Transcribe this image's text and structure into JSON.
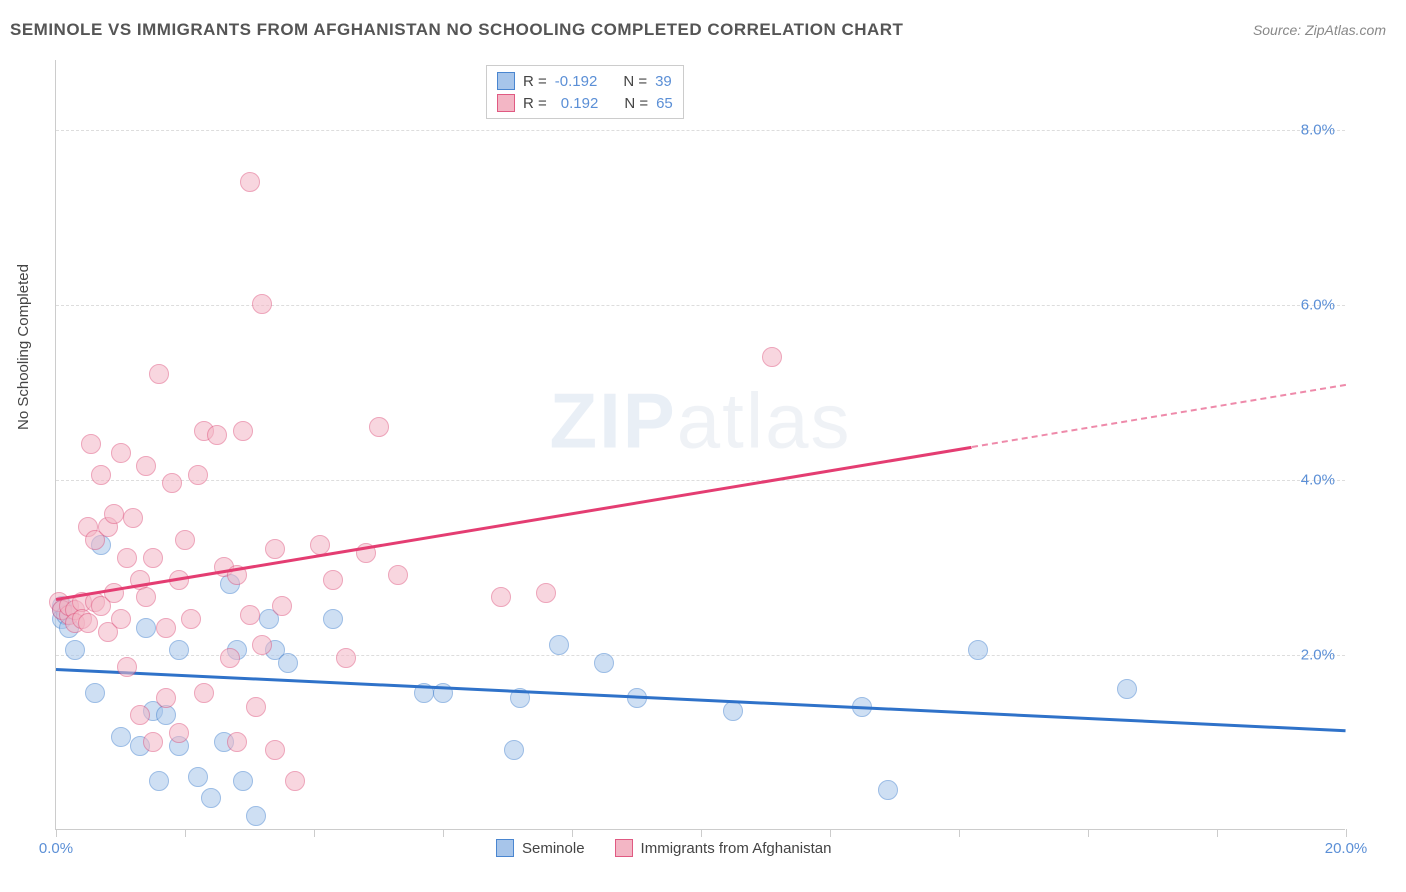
{
  "title": "SEMINOLE VS IMMIGRANTS FROM AFGHANISTAN NO SCHOOLING COMPLETED CORRELATION CHART",
  "source": "Source: ZipAtlas.com",
  "watermark_a": "ZIP",
  "watermark_b": "atlas",
  "y_label": "No Schooling Completed",
  "chart": {
    "type": "scatter",
    "background_color": "#ffffff",
    "grid_color": "#dddddd",
    "axis_color": "#cccccc",
    "tick_label_color": "#5b8fd6",
    "xlim": [
      0,
      20
    ],
    "ylim": [
      0,
      8.8
    ],
    "x_ticks": [
      0,
      2,
      4,
      6,
      8,
      10,
      12,
      14,
      16,
      18,
      20
    ],
    "x_tick_labels": {
      "0": "0.0%",
      "20": "20.0%"
    },
    "y_ticks": [
      2,
      4,
      6,
      8
    ],
    "y_tick_labels": {
      "2": "2.0%",
      "4": "4.0%",
      "6": "6.0%",
      "8": "8.0%"
    },
    "marker_radius": 10,
    "marker_opacity": 0.55,
    "line_width": 2.5
  },
  "series": [
    {
      "name": "Seminole",
      "fill_color": "#a7c5ea",
      "stroke_color": "#4a86d0",
      "trend_color": "#2f72c9",
      "trend": {
        "x1": 0,
        "y1": 1.85,
        "x2": 20,
        "y2": 1.15,
        "dash_from_x": null
      },
      "r_label": "R =",
      "r_value": "-0.192",
      "n_label": "N =",
      "n_value": "39",
      "points": [
        [
          0.1,
          2.55
        ],
        [
          0.1,
          2.5
        ],
        [
          0.1,
          2.4
        ],
        [
          0.15,
          2.45
        ],
        [
          0.2,
          2.3
        ],
        [
          0.3,
          2.05
        ],
        [
          0.6,
          1.55
        ],
        [
          0.7,
          3.25
        ],
        [
          1.0,
          1.05
        ],
        [
          1.3,
          0.95
        ],
        [
          1.4,
          2.3
        ],
        [
          1.5,
          1.35
        ],
        [
          1.6,
          0.55
        ],
        [
          1.7,
          1.3
        ],
        [
          1.9,
          0.95
        ],
        [
          1.9,
          2.05
        ],
        [
          2.2,
          0.6
        ],
        [
          2.4,
          0.35
        ],
        [
          2.6,
          1.0
        ],
        [
          2.7,
          2.8
        ],
        [
          2.8,
          2.05
        ],
        [
          2.9,
          0.55
        ],
        [
          3.1,
          0.15
        ],
        [
          3.3,
          2.4
        ],
        [
          3.4,
          2.05
        ],
        [
          3.6,
          1.9
        ],
        [
          4.3,
          2.4
        ],
        [
          5.7,
          1.55
        ],
        [
          6.0,
          1.55
        ],
        [
          7.1,
          0.9
        ],
        [
          7.2,
          1.5
        ],
        [
          7.8,
          2.1
        ],
        [
          8.5,
          1.9
        ],
        [
          9.0,
          1.5
        ],
        [
          10.5,
          1.35
        ],
        [
          12.5,
          1.4
        ],
        [
          12.9,
          0.45
        ],
        [
          14.3,
          2.05
        ],
        [
          16.6,
          1.6
        ]
      ]
    },
    {
      "name": "Immigants from Afghanistan",
      "legend_label": "Immigrants from Afghanistan",
      "fill_color": "#f3b6c5",
      "stroke_color": "#e05a82",
      "trend_color": "#e43d72",
      "trend": {
        "x1": 0,
        "y1": 2.65,
        "x2": 20,
        "y2": 5.1,
        "dash_from_x": 14.2
      },
      "r_label": "R =",
      "r_value": "0.192",
      "n_label": "N =",
      "n_value": "65",
      "points": [
        [
          0.05,
          2.6
        ],
        [
          0.1,
          2.5
        ],
        [
          0.2,
          2.45
        ],
        [
          0.2,
          2.55
        ],
        [
          0.3,
          2.5
        ],
        [
          0.3,
          2.35
        ],
        [
          0.4,
          2.6
        ],
        [
          0.4,
          2.4
        ],
        [
          0.5,
          2.35
        ],
        [
          0.5,
          3.45
        ],
        [
          0.55,
          4.4
        ],
        [
          0.6,
          2.6
        ],
        [
          0.6,
          3.3
        ],
        [
          0.7,
          2.55
        ],
        [
          0.7,
          4.05
        ],
        [
          0.8,
          2.25
        ],
        [
          0.8,
          3.45
        ],
        [
          0.9,
          2.7
        ],
        [
          0.9,
          3.6
        ],
        [
          1.0,
          2.4
        ],
        [
          1.0,
          4.3
        ],
        [
          1.1,
          3.1
        ],
        [
          1.1,
          1.85
        ],
        [
          1.2,
          3.55
        ],
        [
          1.3,
          2.85
        ],
        [
          1.3,
          1.3
        ],
        [
          1.4,
          2.65
        ],
        [
          1.4,
          4.15
        ],
        [
          1.5,
          3.1
        ],
        [
          1.5,
          1.0
        ],
        [
          1.6,
          5.2
        ],
        [
          1.7,
          2.3
        ],
        [
          1.7,
          1.5
        ],
        [
          1.8,
          3.95
        ],
        [
          1.9,
          2.85
        ],
        [
          1.9,
          1.1
        ],
        [
          2.0,
          3.3
        ],
        [
          2.1,
          2.4
        ],
        [
          2.2,
          4.05
        ],
        [
          2.3,
          1.55
        ],
        [
          2.3,
          4.55
        ],
        [
          2.5,
          4.5
        ],
        [
          2.6,
          3.0
        ],
        [
          2.7,
          1.95
        ],
        [
          2.8,
          2.9
        ],
        [
          2.8,
          1.0
        ],
        [
          2.9,
          4.55
        ],
        [
          3.0,
          7.4
        ],
        [
          3.0,
          2.45
        ],
        [
          3.1,
          1.4
        ],
        [
          3.2,
          6.0
        ],
        [
          3.2,
          2.1
        ],
        [
          3.4,
          3.2
        ],
        [
          3.4,
          0.9
        ],
        [
          3.5,
          2.55
        ],
        [
          3.7,
          0.55
        ],
        [
          4.1,
          3.25
        ],
        [
          4.3,
          2.85
        ],
        [
          4.5,
          1.95
        ],
        [
          4.8,
          3.15
        ],
        [
          5.0,
          4.6
        ],
        [
          5.3,
          2.9
        ],
        [
          6.9,
          2.65
        ],
        [
          7.6,
          2.7
        ],
        [
          11.1,
          5.4
        ]
      ]
    }
  ],
  "bottom_legend": [
    {
      "label": "Seminole",
      "series_idx": 0
    },
    {
      "label": "Immigrants from Afghanistan",
      "series_idx": 1
    }
  ]
}
